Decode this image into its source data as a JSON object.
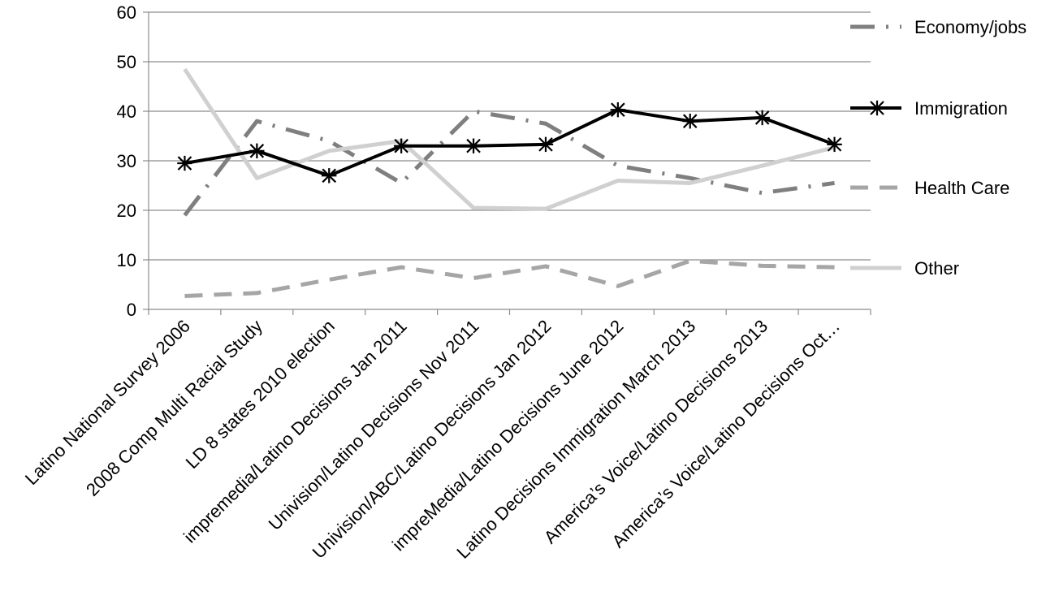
{
  "chart_data": {
    "type": "line",
    "categories": [
      "Latino National Survey 2006",
      "2008 Comp Multi Racial Study",
      "LD 8 states 2010 election",
      "impremedia/Latino Decisions Jan 2011",
      "Univision/Latino Decisions Nov 2011",
      "Univision/ABC/Latino Decisions Jan 2012",
      "impreMedia/Latino Decisions June 2012",
      "Latino Decisions Immigration March 2013",
      "America’s Voice/Latino Decisions 2013",
      "America’s Voice/Latino Decisions Oct…"
    ],
    "series": [
      {
        "name": "Economy/jobs",
        "color": "#7f7f7f",
        "style": "dash-dot",
        "values": [
          19,
          38,
          34,
          25.5,
          40,
          37.5,
          29,
          26.5,
          23.5,
          25.5
        ]
      },
      {
        "name": "Immigration",
        "color": "#000000",
        "style": "solid-star",
        "values": [
          29.5,
          32,
          27,
          33,
          33,
          33.3,
          40.3,
          38,
          38.7,
          33.3
        ]
      },
      {
        "name": "Health Care",
        "color": "#a6a6a6",
        "style": "dash",
        "values": [
          2.7,
          3.3,
          6,
          8.5,
          6.3,
          8.7,
          4.7,
          9.8,
          8.8,
          8.5
        ]
      },
      {
        "name": "Other",
        "color": "#d0d0d0",
        "style": "solid",
        "values": [
          48.5,
          26.5,
          32,
          34,
          20.5,
          20.3,
          26,
          25.5,
          29,
          32.7
        ]
      }
    ],
    "ylim": [
      0,
      60
    ],
    "yticks": [
      0,
      10,
      20,
      30,
      40,
      50,
      60
    ],
    "grid": "horizontal",
    "legend": "right"
  }
}
